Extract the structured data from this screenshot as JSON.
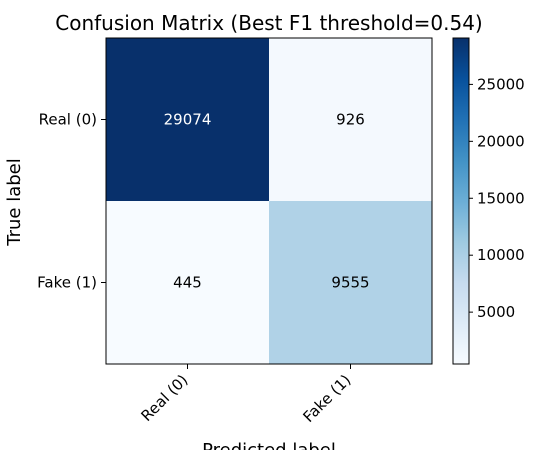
{
  "chart_data": {
    "type": "heatmap",
    "title": "Confusion Matrix (Best F1 threshold=0.54)",
    "xlabel": "Predicted label",
    "ylabel": "True label",
    "x_categories": [
      "Real (0)",
      "Fake (1)"
    ],
    "y_categories": [
      "Real (0)",
      "Fake (1)"
    ],
    "values": [
      [
        29074,
        926
      ],
      [
        445,
        9555
      ]
    ],
    "colormap": "Blues",
    "colorbar": {
      "min": 445,
      "max": 29074,
      "ticks": [
        5000,
        10000,
        15000,
        20000,
        25000
      ],
      "tick_labels": [
        "5000",
        "10000",
        "15000",
        "20000",
        "25000"
      ]
    },
    "grid": false
  },
  "colors": {
    "blues_low": "#f7fbff",
    "blues_high": "#08306b",
    "text_on_dark": "#ffffff",
    "text_on_light": "#000000"
  }
}
